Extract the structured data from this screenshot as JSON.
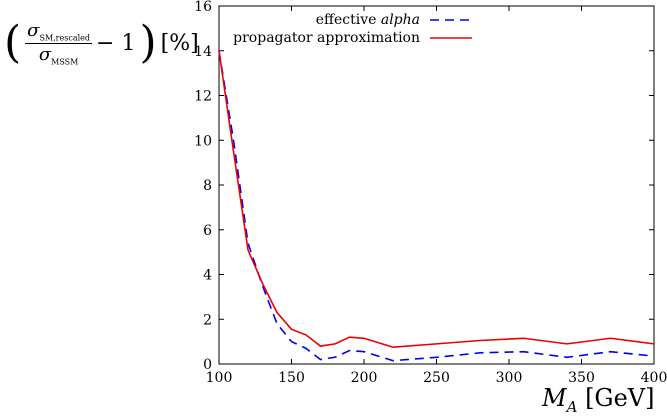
{
  "chart_data": {
    "type": "line",
    "xlabel": {
      "var": "M",
      "sub": "A",
      "unit": "[GeV]"
    },
    "ylabel": {
      "num": "σ",
      "num_sub": "SM,rescaled",
      "den": "σ",
      "den_sub": "MSSM",
      "tail": "− 1",
      "unit": "[%]"
    },
    "xlim": [
      100,
      400
    ],
    "ylim": [
      0,
      16
    ],
    "xticks": [
      100,
      150,
      200,
      250,
      300,
      350,
      400
    ],
    "yticks": [
      0,
      2,
      4,
      6,
      8,
      10,
      12,
      14,
      16
    ],
    "grid": false,
    "legend_placement": "top-right",
    "series": [
      {
        "name": "effective alpha",
        "name_plain": "effective ",
        "name_italic": "alpha",
        "color": "#0000ee",
        "dash": true,
        "x": [
          100,
          110,
          120,
          130,
          140,
          150,
          160,
          170,
          180,
          190,
          200,
          220,
          250,
          280,
          310,
          340,
          370,
          400
        ],
        "y": [
          14,
          10,
          5.4,
          3.5,
          1.8,
          1.0,
          0.7,
          0.2,
          0.3,
          0.6,
          0.55,
          0.15,
          0.3,
          0.5,
          0.55,
          0.3,
          0.55,
          0.35
        ]
      },
      {
        "name": "propagator approximation",
        "color": "#ee0000",
        "dash": false,
        "x": [
          100,
          110,
          120,
          130,
          140,
          150,
          160,
          170,
          180,
          190,
          200,
          220,
          250,
          280,
          310,
          340,
          370,
          400
        ],
        "y": [
          14,
          9.5,
          5.1,
          3.6,
          2.3,
          1.55,
          1.3,
          0.8,
          0.9,
          1.2,
          1.15,
          0.75,
          0.9,
          1.05,
          1.15,
          0.9,
          1.15,
          0.9
        ]
      }
    ]
  }
}
